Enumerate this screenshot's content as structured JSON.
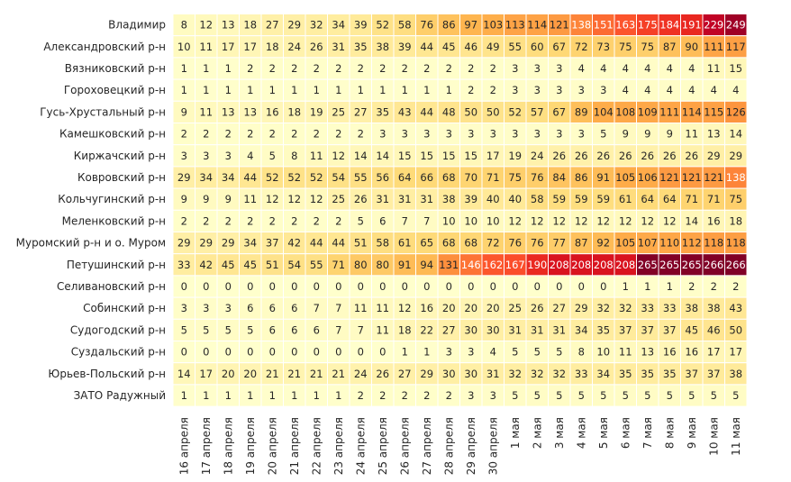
{
  "chart_data": {
    "type": "heatmap",
    "title": "",
    "xlabel": "",
    "ylabel": "",
    "colormap": "YlOrRd",
    "color_range": [
      0,
      266
    ],
    "columns": [
      "16 апреля",
      "17 апреля",
      "18 апреля",
      "19 апреля",
      "20 апреля",
      "21 апреля",
      "22 апреля",
      "23 апреля",
      "24 апреля",
      "25 апреля",
      "26 апреля",
      "27 апреля",
      "28 апреля",
      "29 апреля",
      "30 апреля",
      "1 мая",
      "2 мая",
      "3 мая",
      "4 мая",
      "5 мая",
      "6 мая",
      "7 мая",
      "8 мая",
      "9 мая",
      "10 мая",
      "11 мая"
    ],
    "rows": [
      "Владимир",
      "Александровский р-н",
      "Вязниковский р-н",
      "Гороховецкий р-н",
      "Гусь-Хрустальный р-н",
      "Камешковский р-н",
      "Киржачский р-н",
      "Ковровский р-н",
      "Кольчугинский р-н",
      "Меленковский р-н",
      "Муромский р-н и о. Муром",
      "Петушинский р-н",
      "Селивановский р-н",
      "Собинский р-н",
      "Судогодский р-н",
      "Суздальский р-н",
      "Юрьев-Польский р-н",
      "ЗАТО Радужный"
    ],
    "values": [
      [
        8,
        12,
        13,
        18,
        27,
        29,
        32,
        34,
        39,
        52,
        58,
        76,
        86,
        97,
        103,
        113,
        114,
        121,
        138,
        151,
        163,
        175,
        184,
        191,
        229,
        249
      ],
      [
        10,
        11,
        17,
        17,
        18,
        24,
        26,
        31,
        35,
        38,
        39,
        44,
        45,
        46,
        49,
        55,
        60,
        67,
        72,
        73,
        75,
        75,
        87,
        90,
        111,
        117
      ],
      [
        1,
        1,
        1,
        2,
        2,
        2,
        2,
        2,
        2,
        2,
        2,
        2,
        2,
        2,
        2,
        3,
        3,
        3,
        4,
        4,
        4,
        4,
        4,
        4,
        11,
        15
      ],
      [
        1,
        1,
        1,
        1,
        1,
        1,
        1,
        1,
        1,
        1,
        1,
        1,
        1,
        2,
        2,
        3,
        3,
        3,
        3,
        3,
        4,
        4,
        4,
        4,
        4,
        4
      ],
      [
        9,
        11,
        13,
        13,
        16,
        18,
        19,
        25,
        27,
        35,
        43,
        44,
        48,
        50,
        50,
        52,
        57,
        67,
        89,
        104,
        108,
        109,
        111,
        114,
        115,
        126
      ],
      [
        2,
        2,
        2,
        2,
        2,
        2,
        2,
        2,
        2,
        3,
        3,
        3,
        3,
        3,
        3,
        3,
        3,
        3,
        3,
        5,
        9,
        9,
        9,
        11,
        13,
        14
      ],
      [
        3,
        3,
        3,
        4,
        5,
        8,
        11,
        12,
        14,
        14,
        15,
        15,
        15,
        15,
        17,
        19,
        24,
        26,
        26,
        26,
        26,
        26,
        26,
        26,
        29,
        29
      ],
      [
        29,
        34,
        34,
        44,
        52,
        52,
        52,
        54,
        55,
        56,
        64,
        66,
        68,
        70,
        71,
        75,
        76,
        84,
        86,
        91,
        105,
        106,
        121,
        121,
        121,
        138
      ],
      [
        9,
        9,
        9,
        11,
        12,
        12,
        12,
        25,
        26,
        31,
        31,
        31,
        38,
        39,
        40,
        40,
        58,
        59,
        59,
        59,
        61,
        64,
        64,
        71,
        71,
        75
      ],
      [
        2,
        2,
        2,
        2,
        2,
        2,
        2,
        2,
        5,
        6,
        7,
        7,
        10,
        10,
        10,
        12,
        12,
        12,
        12,
        12,
        12,
        12,
        12,
        14,
        16,
        18
      ],
      [
        29,
        29,
        29,
        34,
        37,
        42,
        44,
        44,
        51,
        58,
        61,
        65,
        68,
        68,
        72,
        76,
        76,
        77,
        87,
        92,
        105,
        107,
        110,
        112,
        118,
        118
      ],
      [
        33,
        42,
        45,
        45,
        51,
        54,
        55,
        71,
        80,
        80,
        91,
        94,
        131,
        146,
        162,
        167,
        190,
        208,
        208,
        208,
        208,
        265,
        265,
        265,
        266,
        266
      ],
      [
        0,
        0,
        0,
        0,
        0,
        0,
        0,
        0,
        0,
        0,
        0,
        0,
        0,
        0,
        0,
        0,
        0,
        0,
        0,
        0,
        1,
        1,
        1,
        2,
        2,
        2
      ],
      [
        3,
        3,
        3,
        6,
        6,
        6,
        7,
        7,
        11,
        11,
        12,
        16,
        20,
        20,
        20,
        25,
        26,
        27,
        29,
        32,
        32,
        33,
        33,
        38,
        38,
        43
      ],
      [
        5,
        5,
        5,
        5,
        6,
        6,
        6,
        7,
        7,
        11,
        18,
        22,
        27,
        30,
        30,
        31,
        31,
        31,
        34,
        35,
        37,
        37,
        37,
        45,
        46,
        50
      ],
      [
        0,
        0,
        0,
        0,
        0,
        0,
        0,
        0,
        0,
        0,
        1,
        1,
        3,
        3,
        4,
        5,
        5,
        5,
        8,
        10,
        11,
        13,
        16,
        16,
        17,
        17
      ],
      [
        14,
        17,
        20,
        20,
        21,
        21,
        21,
        21,
        24,
        26,
        27,
        29,
        30,
        30,
        31,
        32,
        32,
        32,
        33,
        34,
        35,
        35,
        35,
        37,
        37,
        38
      ],
      [
        1,
        1,
        1,
        1,
        1,
        1,
        1,
        1,
        2,
        2,
        2,
        2,
        2,
        3,
        3,
        5,
        5,
        5,
        5,
        5,
        5,
        5,
        5,
        5,
        5,
        5
      ]
    ]
  }
}
